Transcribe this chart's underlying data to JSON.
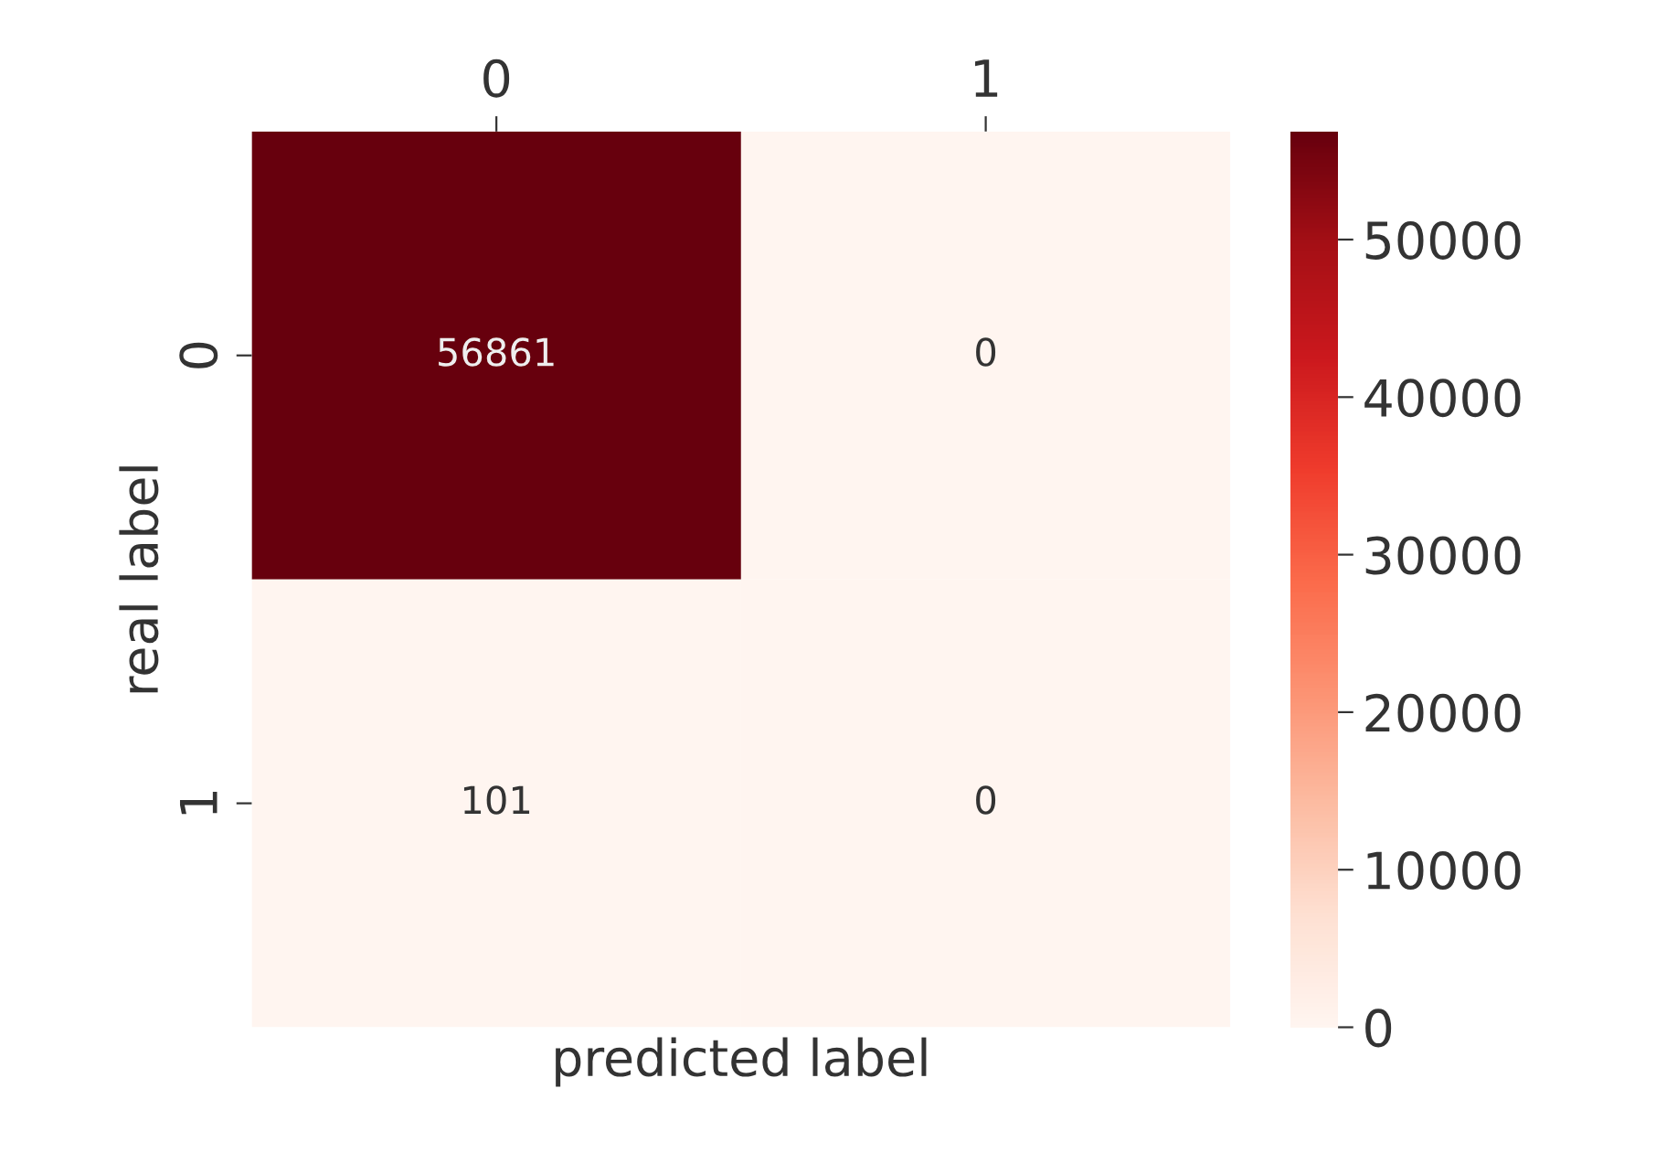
{
  "chart_data": {
    "type": "heatmap",
    "xlabel": "predicted label",
    "ylabel": "real label",
    "categories": [
      "0",
      "1"
    ],
    "y_categories": [
      "0",
      "1"
    ],
    "cells": [
      [
        56861,
        0
      ],
      [
        101,
        0
      ]
    ],
    "data_labels": true,
    "clim": [
      0,
      56861
    ],
    "cticks": [
      0,
      10000,
      20000,
      30000,
      40000,
      50000
    ]
  }
}
